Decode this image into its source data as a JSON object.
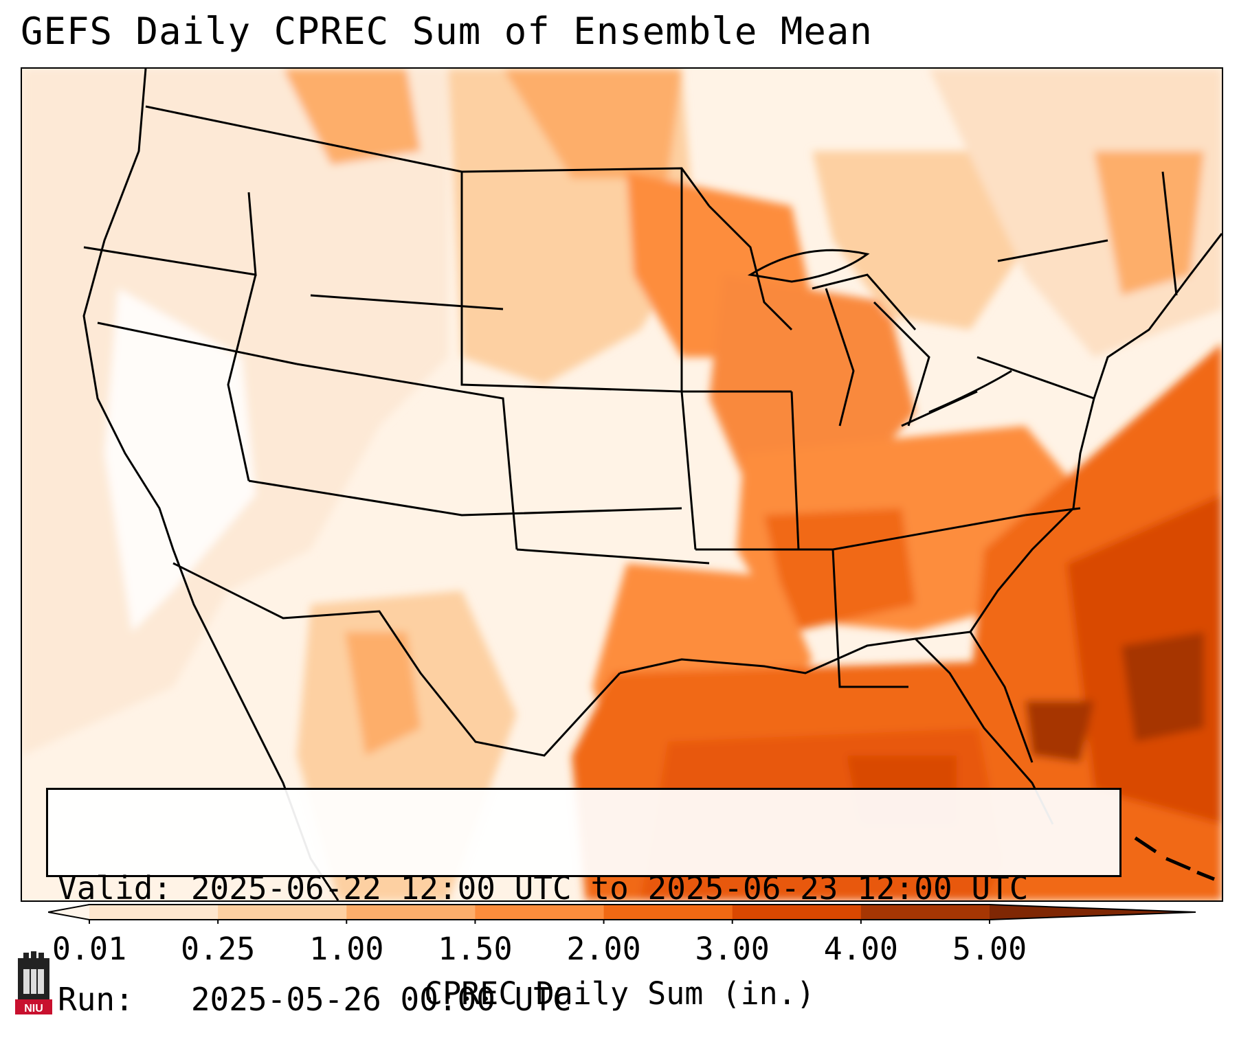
{
  "title": "GEFS Daily CPREC Sum of Ensemble Mean",
  "info": {
    "valid_line": "Valid: 2025-06-22 12:00 UTC to 2025-06-23 12:00 UTC",
    "run_line": "Run:   2025-05-26 00:00 UTC"
  },
  "colorbar": {
    "label": "CPREC Daily Sum (in.)",
    "ticks": [
      "0.01",
      "0.25",
      "1.00",
      "1.50",
      "2.00",
      "3.00",
      "4.00",
      "5.00"
    ],
    "colors": [
      "#fff5eb",
      "#fee6ce",
      "#fdd0a2",
      "#fdae6b",
      "#fd8d3c",
      "#f16913",
      "#d94801",
      "#a63603",
      "#7f2704"
    ]
  },
  "logo": {
    "text": "NIU",
    "icon": "niu-castle-logo"
  },
  "map": {
    "region": "CONUS",
    "land_borders": "black state and country outlines"
  }
}
